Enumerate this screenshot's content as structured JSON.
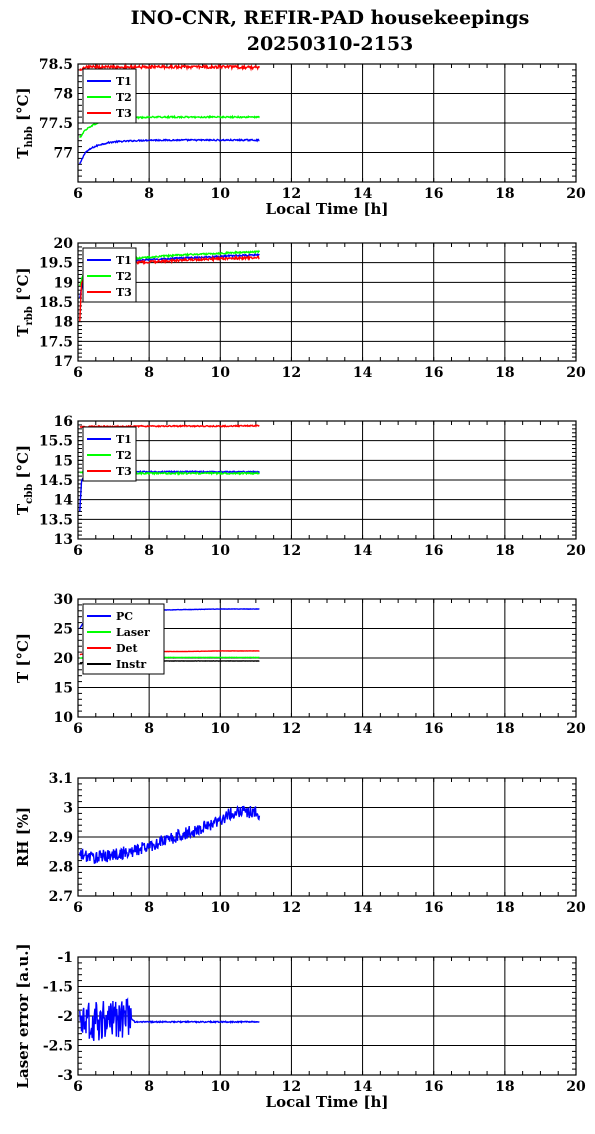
{
  "title_line1": "INO-CNR, REFIR-PAD housekeepings",
  "title_line2": "20250310-2153",
  "colors": {
    "blue": "#0000ff",
    "green": "#00ff00",
    "red": "#ff0000",
    "black": "#000000",
    "grid": "#000000"
  },
  "chart_data": [
    {
      "type": "line",
      "ylabel": "T_hbb [°C]",
      "xlabel": "Local Time [h]",
      "xlim": [
        6,
        20
      ],
      "ylim": [
        76.5,
        78.5
      ],
      "xticks": [
        "6",
        "8",
        "10",
        "12",
        "14",
        "16",
        "18",
        "20"
      ],
      "yticks": [
        "77",
        "77.5",
        "78",
        "78.5"
      ],
      "grid": true,
      "legend_position": "top-left",
      "series": [
        {
          "name": "T1",
          "color": "blue",
          "x": [
            6.05,
            6.2,
            6.4,
            6.6,
            6.8,
            7.0,
            7.3,
            7.6,
            8.0,
            8.5,
            9.0,
            9.5,
            10.0,
            10.5,
            11.1
          ],
          "y": [
            76.8,
            77.0,
            77.08,
            77.13,
            77.16,
            77.18,
            77.19,
            77.2,
            77.21,
            77.21,
            77.21,
            77.21,
            77.21,
            77.21,
            77.21
          ],
          "noise": 0.012
        },
        {
          "name": "T2",
          "color": "green",
          "x": [
            6.05,
            6.2,
            6.4,
            6.6,
            6.8,
            7.0,
            7.3,
            7.6,
            8.0,
            8.5,
            9.0,
            9.5,
            10.0,
            10.5,
            11.1
          ],
          "y": [
            77.25,
            77.38,
            77.46,
            77.51,
            77.54,
            77.56,
            77.58,
            77.59,
            77.6,
            77.6,
            77.6,
            77.6,
            77.6,
            77.6,
            77.6
          ],
          "noise": 0.012
        },
        {
          "name": "T3",
          "color": "red",
          "x": [
            6.05,
            6.2,
            6.5,
            7.0,
            7.5,
            8.0,
            9.0,
            10.0,
            11.1
          ],
          "y": [
            78.38,
            78.44,
            78.45,
            78.45,
            78.45,
            78.45,
            78.45,
            78.45,
            78.44
          ],
          "noise": 0.025
        }
      ]
    },
    {
      "type": "line",
      "ylabel": "T_rbb [°C]",
      "xlim": [
        6,
        20
      ],
      "ylim": [
        17,
        20
      ],
      "xticks": [
        "6",
        "8",
        "10",
        "12",
        "14",
        "16",
        "18",
        "20"
      ],
      "yticks": [
        "17",
        "17.5",
        "18",
        "18.5",
        "19",
        "19.5",
        "20"
      ],
      "grid": true,
      "legend_position": "top-left",
      "series": [
        {
          "name": "T1",
          "color": "blue",
          "x": [
            6.05,
            6.2,
            6.5,
            7.0,
            8.0,
            9.0,
            10.0,
            11.1
          ],
          "y": [
            18.6,
            19.35,
            19.45,
            19.5,
            19.58,
            19.62,
            19.66,
            19.7
          ],
          "noise": 0.02
        },
        {
          "name": "T2",
          "color": "green",
          "x": [
            6.05,
            6.2,
            6.5,
            7.0,
            8.0,
            9.0,
            10.0,
            11.1
          ],
          "y": [
            18.9,
            19.4,
            19.5,
            19.56,
            19.64,
            19.7,
            19.74,
            19.78
          ],
          "noise": 0.02
        },
        {
          "name": "T3",
          "color": "red",
          "x": [
            6.05,
            6.1,
            6.3,
            6.6,
            7.0,
            8.0,
            9.0,
            10.0,
            11.1
          ],
          "y": [
            18.0,
            19.0,
            19.3,
            19.42,
            19.48,
            19.52,
            19.57,
            19.6,
            19.63
          ],
          "noise": 0.03
        }
      ]
    },
    {
      "type": "line",
      "ylabel": "T_cbb [°C]",
      "xlim": [
        6,
        20
      ],
      "ylim": [
        13,
        16
      ],
      "xticks": [
        "6",
        "8",
        "10",
        "12",
        "14",
        "16",
        "18",
        "20"
      ],
      "yticks": [
        "13",
        "13.5",
        "14",
        "14.5",
        "15",
        "15.5",
        "16"
      ],
      "grid": true,
      "legend_position": "top-left",
      "series": [
        {
          "name": "T1",
          "color": "blue",
          "x": [
            6.05,
            6.1,
            6.3,
            6.6,
            7.0,
            8.0,
            9.0,
            10.0,
            11.1
          ],
          "y": [
            13.7,
            14.5,
            14.68,
            14.7,
            14.7,
            14.71,
            14.71,
            14.71,
            14.71
          ],
          "noise": 0.015
        },
        {
          "name": "T2",
          "color": "green",
          "x": [
            6.05,
            6.2,
            6.5,
            7.0,
            8.0,
            9.0,
            10.0,
            11.1
          ],
          "y": [
            14.68,
            14.7,
            14.68,
            14.67,
            14.67,
            14.67,
            14.67,
            14.67
          ],
          "noise": 0.02
        },
        {
          "name": "T3",
          "color": "red",
          "x": [
            6.05,
            6.5,
            7.0,
            8.0,
            9.0,
            10.0,
            11.1
          ],
          "y": [
            15.85,
            15.86,
            15.86,
            15.87,
            15.87,
            15.87,
            15.88
          ],
          "noise": 0.015
        }
      ]
    },
    {
      "type": "line",
      "ylabel": "T [°C]",
      "xlim": [
        6,
        20
      ],
      "ylim": [
        10,
        30
      ],
      "xticks": [
        "6",
        "8",
        "10",
        "12",
        "14",
        "16",
        "18",
        "20"
      ],
      "yticks": [
        "10",
        "15",
        "20",
        "25",
        "30"
      ],
      "grid": true,
      "legend_position": "top-left",
      "series": [
        {
          "name": "PC",
          "color": "blue",
          "x": [
            6.05,
            6.2,
            6.5,
            7.0,
            8.0,
            9.0,
            10.0,
            11.1
          ],
          "y": [
            25.0,
            26.5,
            27.5,
            27.9,
            28.1,
            28.2,
            28.3,
            28.3
          ],
          "noise": 0.03
        },
        {
          "name": "Laser",
          "color": "green",
          "x": [
            6.05,
            6.5,
            7.0,
            8.0,
            9.0,
            10.0,
            11.1
          ],
          "y": [
            20.0,
            20.1,
            20.1,
            20.1,
            20.1,
            20.1,
            20.1
          ],
          "noise": 0.02
        },
        {
          "name": "Det",
          "color": "red",
          "x": [
            6.05,
            6.5,
            7.0,
            8.0,
            9.0,
            10.0,
            11.1
          ],
          "y": [
            20.6,
            20.9,
            21.0,
            21.1,
            21.1,
            21.2,
            21.2
          ],
          "noise": 0.02
        },
        {
          "name": "Instr",
          "color": "black",
          "x": [
            6.05,
            6.5,
            7.0,
            8.0,
            9.0,
            10.0,
            11.1
          ],
          "y": [
            19.2,
            19.3,
            19.4,
            19.5,
            19.5,
            19.5,
            19.5
          ],
          "noise": 0.02
        }
      ]
    },
    {
      "type": "line",
      "ylabel": "RH [%]",
      "xlim": [
        6,
        20
      ],
      "ylim": [
        2.7,
        3.1
      ],
      "xticks": [
        "6",
        "8",
        "10",
        "12",
        "14",
        "16",
        "18",
        "20"
      ],
      "yticks": [
        "2.7",
        "2.8",
        "2.9",
        "3",
        "3.1"
      ],
      "grid": true,
      "series": [
        {
          "name": "",
          "color": "blue",
          "x": [
            6.05,
            6.5,
            7.0,
            7.5,
            8.0,
            8.5,
            9.0,
            9.5,
            10.0,
            10.5,
            11.1
          ],
          "y": [
            2.84,
            2.83,
            2.84,
            2.85,
            2.87,
            2.89,
            2.91,
            2.93,
            2.96,
            2.99,
            2.98
          ],
          "noise": 0.022
        }
      ]
    },
    {
      "type": "line",
      "ylabel": "Laser error [a.u.]",
      "xlabel": "Local Time [h]",
      "xlim": [
        6,
        20
      ],
      "ylim": [
        -3,
        -1
      ],
      "xticks": [
        "6",
        "8",
        "10",
        "12",
        "14",
        "16",
        "18",
        "20"
      ],
      "yticks": [
        "-3",
        "-2.5",
        "-2",
        "-1.5",
        "-1"
      ],
      "grid": true,
      "series": [
        {
          "name": "",
          "color": "blue",
          "x": [
            6.05,
            6.5,
            7.0,
            7.5,
            7.6,
            8.0,
            9.0,
            10.0,
            11.1
          ],
          "y": [
            -2.1,
            -2.1,
            -2.05,
            -2.05,
            -2.1,
            -2.1,
            -2.1,
            -2.1,
            -2.1
          ],
          "noise": 0.01,
          "burst": {
            "from": 6.05,
            "to": 7.5,
            "amp": 0.35
          }
        }
      ]
    }
  ]
}
